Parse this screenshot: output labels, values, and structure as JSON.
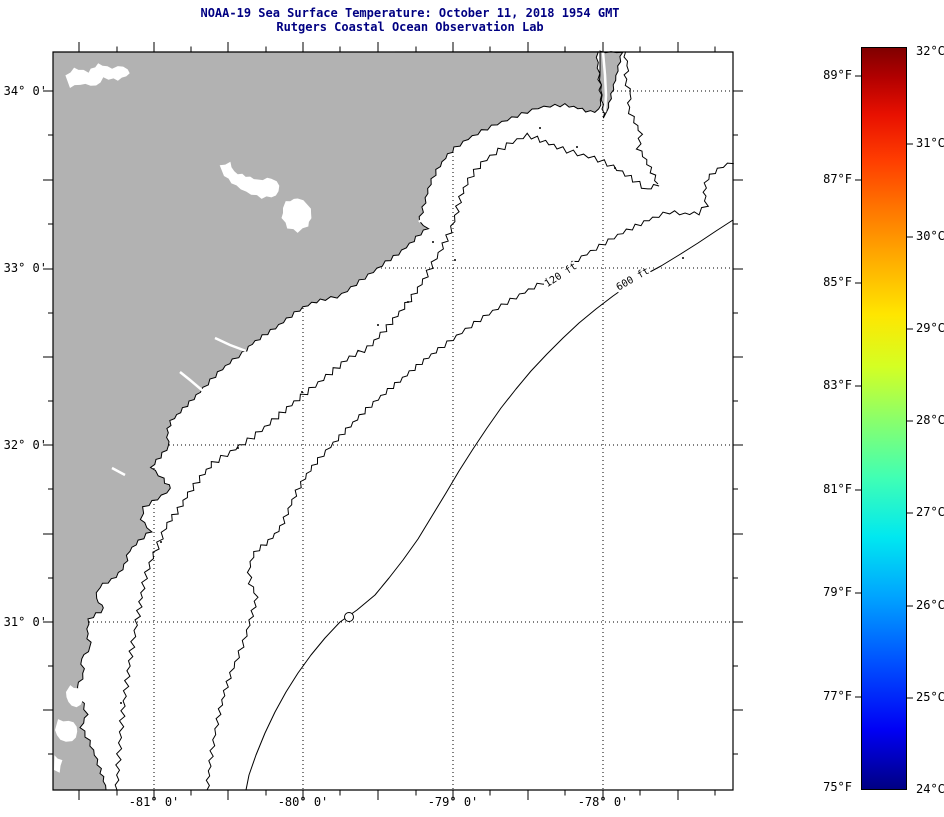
{
  "title": {
    "line1": "NOAA-19 Sea Surface Temperature:  October 11, 2018 1954 GMT",
    "line2": "Rutgers Coastal Ocean Observation Lab"
  },
  "map": {
    "x_tick_labels": [
      "-81° 0'",
      "-80° 0'",
      "-79° 0'",
      "-78° 0'"
    ],
    "y_tick_labels": [
      "34° 0'",
      "33° 0'",
      "32° 0'",
      "31° 0'"
    ],
    "contour_labels": {
      "shelf_120ft": "120 ft",
      "shelf_600ft": "600 ft"
    }
  },
  "colorbar": {
    "fahrenheit_labels": [
      "89°F",
      "87°F",
      "85°F",
      "83°F",
      "81°F",
      "79°F",
      "77°F",
      "75°F"
    ],
    "celsius_labels": [
      "32°C",
      "31°C",
      "30°C",
      "29°C",
      "28°C",
      "27°C",
      "26°C",
      "25°C",
      "24°C"
    ]
  },
  "colors": {
    "title_text": "#000082",
    "land": "#b2b2b2",
    "ocean": "#ffffff",
    "contour_line": "#000000",
    "jet_gradient_stops": [
      "#000083 0%",
      "#0000f5 8%",
      "#0050ff 17%",
      "#00a4ff 26%",
      "#00e8f0 34%",
      "#40ffb4 42%",
      "#8cff69 50%",
      "#d4ff23 57%",
      "#ffe600 64%",
      "#ffb000 71%",
      "#ff7800 78%",
      "#ff3c00 85%",
      "#e81000 91%",
      "#b20000 96%",
      "#800000 100%"
    ]
  }
}
